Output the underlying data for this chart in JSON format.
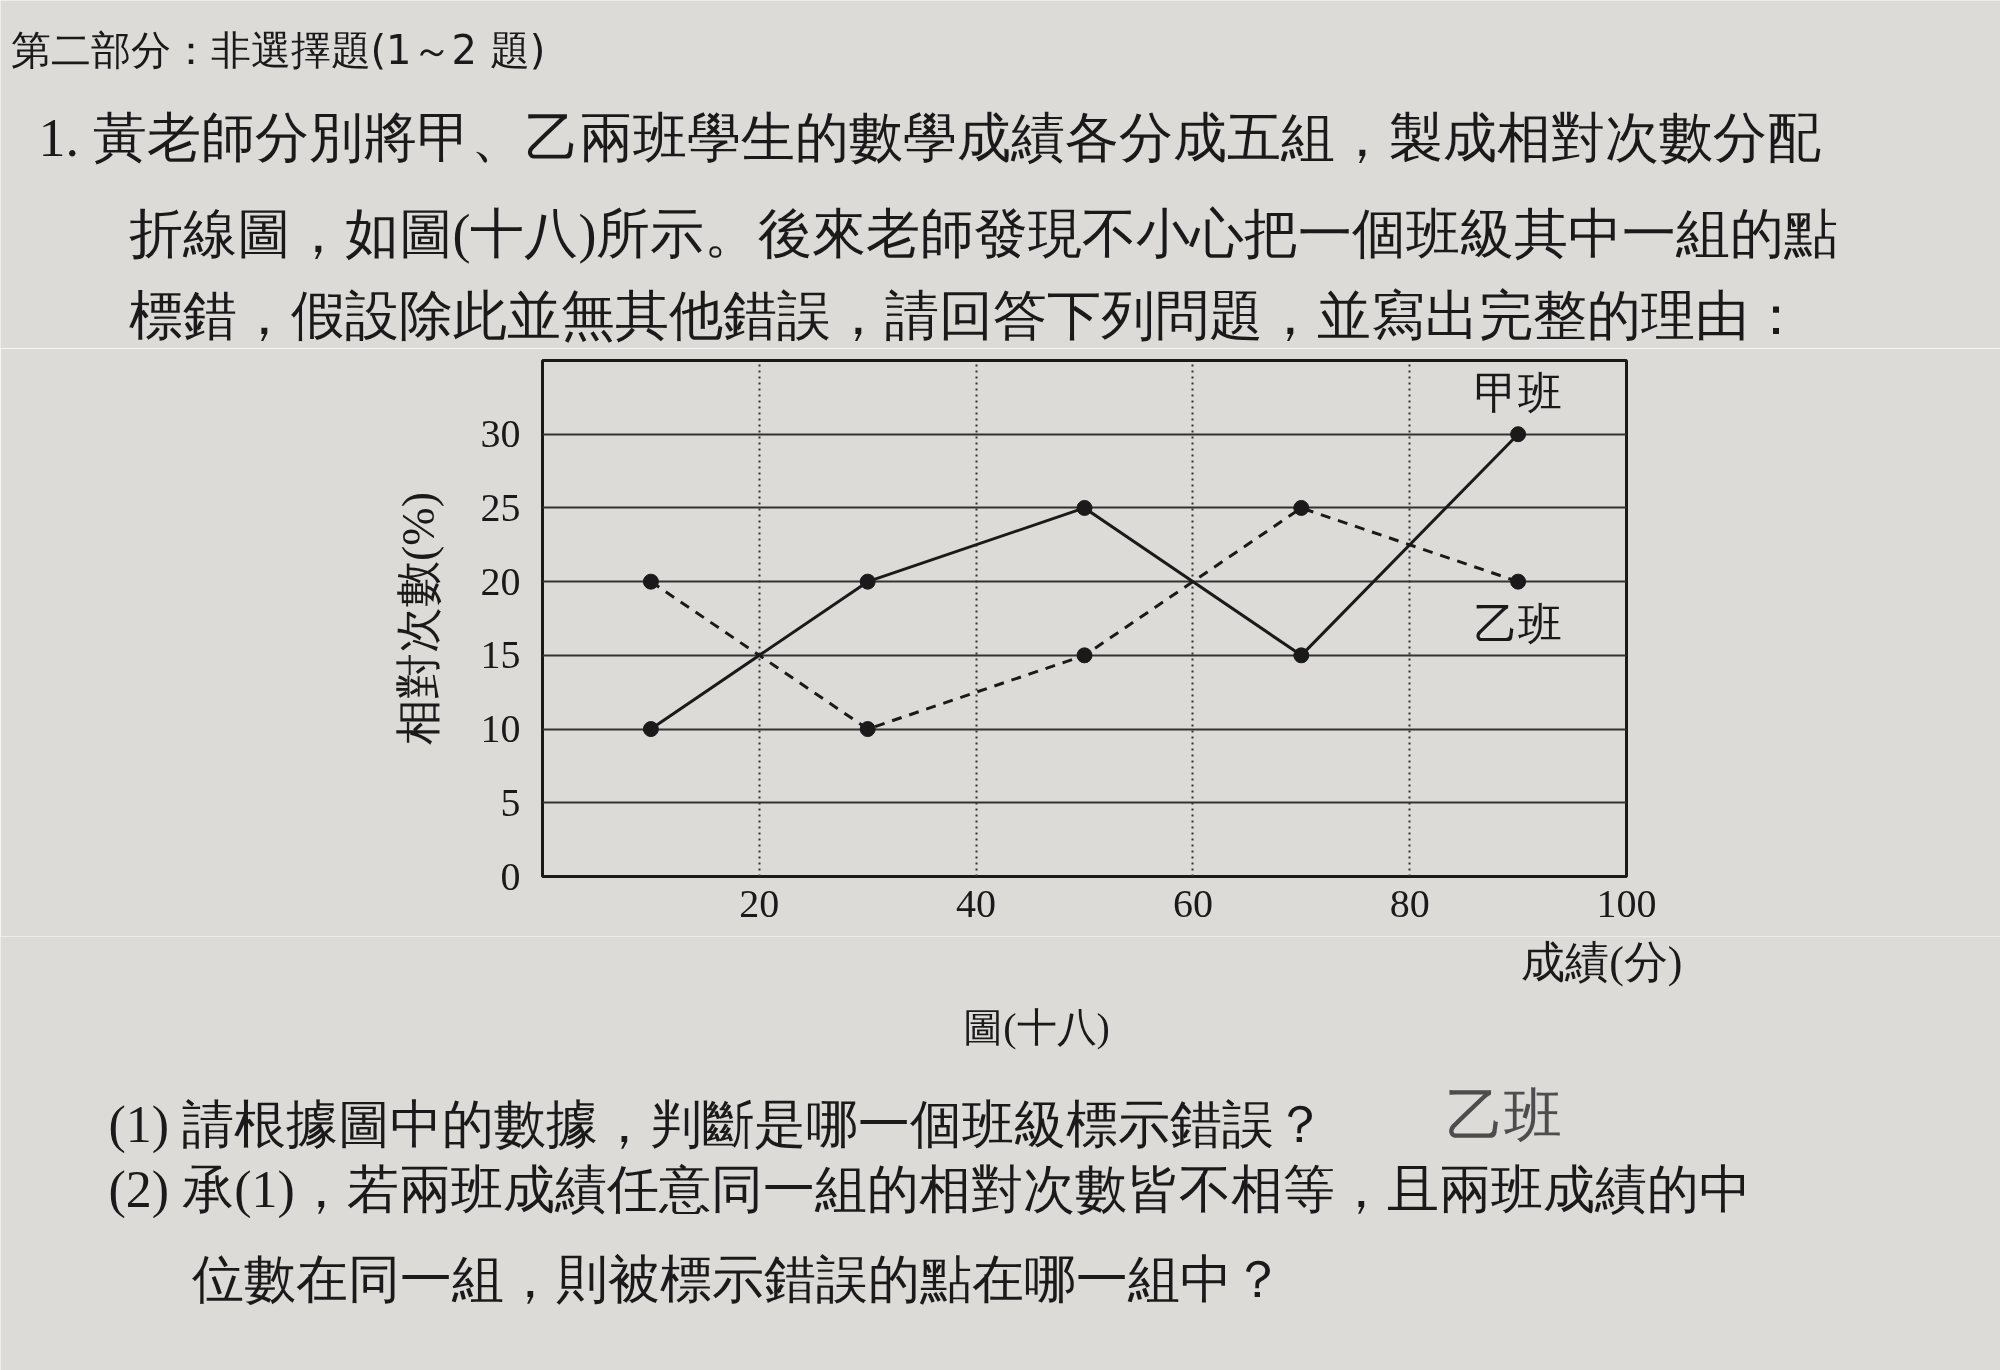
{
  "chart_data": {
    "type": "line",
    "title": "第二部分：非選擇題(1～2 題)",
    "xlabel": "成績(分)",
    "ylabel": "相對次數(%)",
    "x": [
      10,
      30,
      50,
      70,
      90
    ],
    "series": [
      {
        "name": "甲班",
        "color": "#1a1a1a",
        "values": [
          10,
          20,
          25,
          15,
          30
        ],
        "line_style": "solid"
      },
      {
        "name": "乙班",
        "color": "#1a1a1a",
        "values": [
          20,
          10,
          15,
          25,
          20
        ],
        "line_style": "dashed"
      }
    ],
    "xlim": [
      0,
      100
    ],
    "ylim": [
      0,
      35
    ],
    "xticks": [
      20,
      40,
      60,
      80,
      100
    ],
    "yticks": [
      0,
      5,
      10,
      15,
      20,
      25,
      30
    ],
    "grid": true,
    "marker": "circle",
    "annotations": [
      "1. 黃老師分別將甲、乙兩班學生的數學成績各分成五組，製成相對次數分配",
      "折線圖，如圖(十八)所示。後來老師發現不小心把一個班級其中一組的點",
      "標錯，假設除此並無其他錯誤，請回答下列問題，並寫出完整的理由：",
      "圖(十八)",
      "(1) 請根據圖中的數據，判斷是哪一個班級標示錯誤？",
      "乙班",
      "(2) 承(1)，若兩班成績任意同一組的相對次數皆不相等，且兩班成績的中",
      "位數在同一組，則被標示錯誤的點在哪一組中？"
    ]
  }
}
